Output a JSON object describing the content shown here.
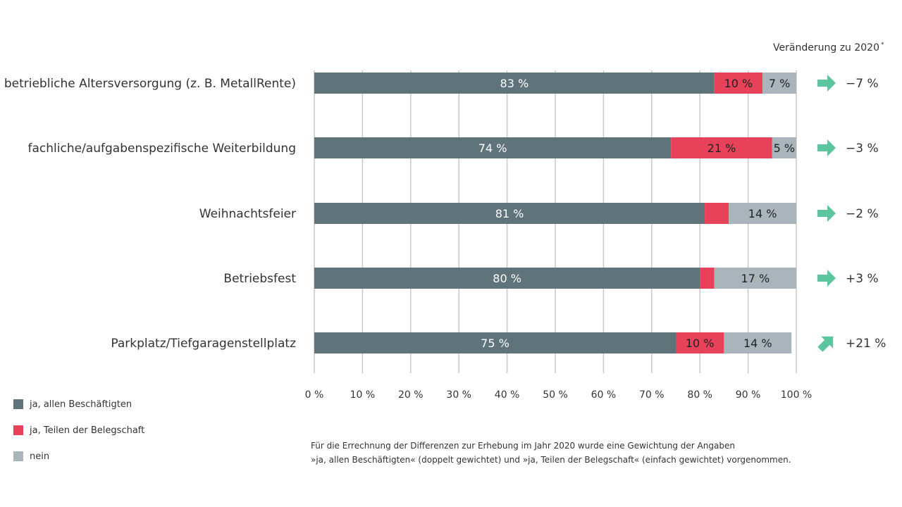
{
  "chart_data": {
    "type": "bar",
    "orientation": "horizontal",
    "stacked": true,
    "categories": [
      "betriebliche Altersversorgung (z. B. MetallRente)",
      "fachliche/aufgabenspezifische Weiterbildung",
      "Weihnachtsfeier",
      "Betriebsfest",
      "Parkplatz/Tiefgaragenstellplatz"
    ],
    "series": [
      {
        "name": "ja, allen Beschäftigten",
        "color": "#5f737b",
        "values": [
          83,
          74,
          81,
          80,
          75
        ],
        "labels": [
          "83 %",
          "74 %",
          "81 %",
          "80 %",
          "75 %"
        ]
      },
      {
        "name": "ja, Teilen der Belegschaft",
        "color": "#e8415a",
        "values": [
          10,
          21,
          5,
          3,
          10
        ],
        "labels": [
          "10 %",
          "21 %",
          "",
          "",
          "10 %"
        ]
      },
      {
        "name": "nein",
        "color": "#a9b5bb",
        "values": [
          7,
          5,
          14,
          17,
          14
        ],
        "labels": [
          "7 %",
          "5 %",
          "14 %",
          "17 %",
          "14 %"
        ]
      }
    ],
    "xlim": [
      0,
      100
    ],
    "xticks": [
      "0 %",
      "10 %",
      "20 %",
      "30 %",
      "40 %",
      "50 %",
      "60 %",
      "70 %",
      "80 %",
      "90 %",
      "100 %"
    ],
    "grid": true,
    "legend_position": "bottom-left",
    "change": {
      "header": "Veränderung zu 2020",
      "header_mark": "*",
      "arrow_color": "#5cc5a0",
      "labels": [
        "−7 %",
        "−3 %",
        "−2 %",
        "+3 %",
        "+21 %"
      ],
      "directions": [
        "right",
        "right",
        "right",
        "right",
        "up-right"
      ]
    },
    "footnote": [
      "Für die Errechnung der Differenzen zur Erhebung im Jahr 2020 wurde eine Gewichtung der Angaben",
      "»ja, allen Beschäftigten« (doppelt gewichtet) und »ja, Teilen der Belegschaft« (einfach gewichtet) vorgenommen."
    ]
  }
}
